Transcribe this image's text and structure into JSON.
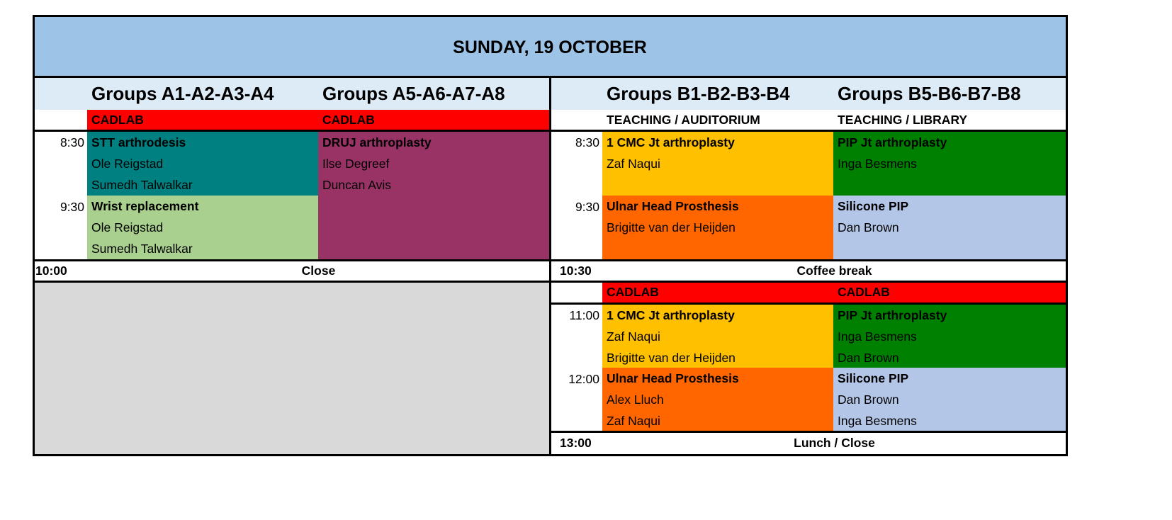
{
  "title": "SUNDAY, 19 OCTOBER",
  "colors": {
    "title_bg": "#9dc3e6",
    "group_header_bg": "#ddebf7",
    "cadlab": "#ff0000",
    "teal": "#008080",
    "plum": "#993366",
    "light_green": "#a9d08e",
    "amber": "#ffc000",
    "orange": "#ff6600",
    "green": "#008000",
    "light_blue": "#b4c6e7",
    "empty_grey": "#d9d9d9"
  },
  "left": {
    "groups": [
      "Groups A1-A2-A3-A4",
      "Groups A5-A6-A7-A8"
    ],
    "venues": [
      "CADLAB",
      "CADLAB"
    ],
    "times": [
      "8:30",
      "9:30"
    ],
    "sessions": [
      {
        "title": "STT arthrodesis",
        "presenters": [
          "Ole Reigstad",
          "Sumedh Talwalkar"
        ],
        "color": "#008080"
      },
      {
        "title": "Wrist replacement",
        "presenters": [
          "Ole Reigstad",
          "Sumedh Talwalkar"
        ],
        "color": "#a9d08e"
      },
      {
        "title": "DRUJ arthroplasty",
        "presenters": [
          "Ilse Degreef",
          "Duncan Avis"
        ],
        "color": "#993366"
      }
    ],
    "end": {
      "time": "10:00",
      "label": "Close"
    }
  },
  "right": {
    "groups": [
      "Groups B1-B2-B3-B4",
      "Groups B5-B6-B7-B8"
    ],
    "venues": [
      "TEACHING / AUDITORIUM",
      "TEACHING / LIBRARY"
    ],
    "times": [
      "8:30",
      "9:30"
    ],
    "sessions": [
      {
        "title": "1 CMC Jt arthroplasty",
        "presenters": [
          "Zaf Naqui"
        ],
        "color": "#ffc000"
      },
      {
        "title": "Ulnar Head Prosthesis",
        "presenters": [
          "Brigitte van der Heijden"
        ],
        "color": "#ff6600"
      },
      {
        "title": "PIP Jt arthroplasty",
        "presenters": [
          "Inga Besmens"
        ],
        "color": "#008000"
      },
      {
        "title": "Silicone PIP",
        "presenters": [
          "Dan Brown"
        ],
        "color": "#b4c6e7"
      }
    ],
    "break": {
      "time": "10:30",
      "label": "Coffee break"
    },
    "venues2": [
      "CADLAB",
      "CADLAB"
    ],
    "times2": [
      "11:00",
      "12:00"
    ],
    "sessions2": [
      {
        "title": "1 CMC Jt arthroplasty",
        "presenters": [
          "Zaf Naqui",
          "Brigitte van der Heijden"
        ],
        "color": "#ffc000"
      },
      {
        "title": "Ulnar Head Prosthesis",
        "presenters": [
          "Alex Lluch",
          "Zaf Naqui"
        ],
        "color": "#ff6600"
      },
      {
        "title": "PIP Jt arthroplasty",
        "presenters": [
          "Inga Besmens",
          "Dan Brown"
        ],
        "color": "#008000"
      },
      {
        "title": "Silicone PIP",
        "presenters": [
          "Dan Brown",
          "Inga Besmens"
        ],
        "color": "#b4c6e7"
      }
    ],
    "end": {
      "time": "13:00",
      "label": "Lunch / Close"
    }
  }
}
